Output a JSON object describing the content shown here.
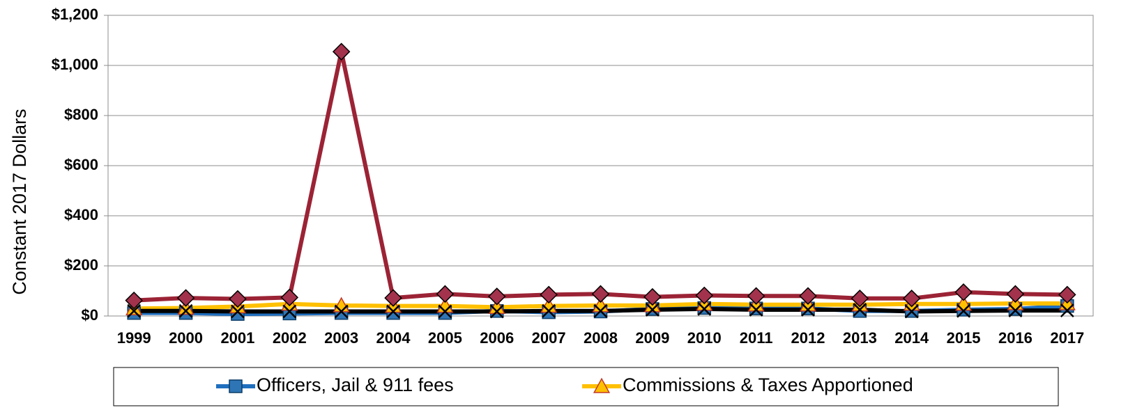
{
  "chart_data": {
    "type": "line",
    "ylabel": "Constant 2017 Dollars",
    "categories": [
      "1999",
      "2000",
      "2001",
      "2002",
      "2003",
      "2004",
      "2005",
      "2006",
      "2007",
      "2008",
      "2009",
      "2010",
      "2011",
      "2012",
      "2013",
      "2014",
      "2015",
      "2016",
      "2017"
    ],
    "series": [
      {
        "name": "Officers, Jail & 911 fees",
        "color": "#1f6fbf",
        "marker": "square",
        "marker_color": "#2e75b6",
        "values": [
          12,
          12,
          8,
          10,
          12,
          12,
          12,
          20,
          15,
          18,
          28,
          32,
          30,
          30,
          20,
          20,
          25,
          28,
          40
        ]
      },
      {
        "name": "Commissions & Taxes Apportioned",
        "color": "#ffc000",
        "marker": "triangle",
        "marker_color": "#ffc000",
        "values": [
          30,
          32,
          38,
          48,
          42,
          40,
          40,
          35,
          40,
          42,
          42,
          48,
          45,
          45,
          45,
          48,
          48,
          50,
          50
        ]
      },
      {
        "color": "#9b2335",
        "marker": "diamond",
        "marker_color": "#a3324c",
        "values": [
          62,
          72,
          68,
          74,
          1055,
          72,
          88,
          78,
          85,
          88,
          76,
          82,
          80,
          80,
          70,
          70,
          95,
          88,
          85
        ]
      },
      {
        "color": "#000000",
        "marker": "x",
        "marker_color": "#000000",
        "values": [
          20,
          20,
          18,
          18,
          18,
          18,
          18,
          18,
          20,
          20,
          25,
          28,
          25,
          25,
          25,
          18,
          20,
          22,
          22
        ]
      }
    ],
    "ylim": [
      0,
      1200
    ],
    "yticks": [
      {
        "value": 0,
        "label": "$0"
      },
      {
        "value": 200,
        "label": "$200"
      },
      {
        "value": 400,
        "label": "$400"
      },
      {
        "value": 600,
        "label": "$600"
      },
      {
        "value": 800,
        "label": "$800"
      },
      {
        "value": 1000,
        "label": "$1,000"
      },
      {
        "value": 1200,
        "label": "$1,200"
      }
    ],
    "grid": true
  }
}
